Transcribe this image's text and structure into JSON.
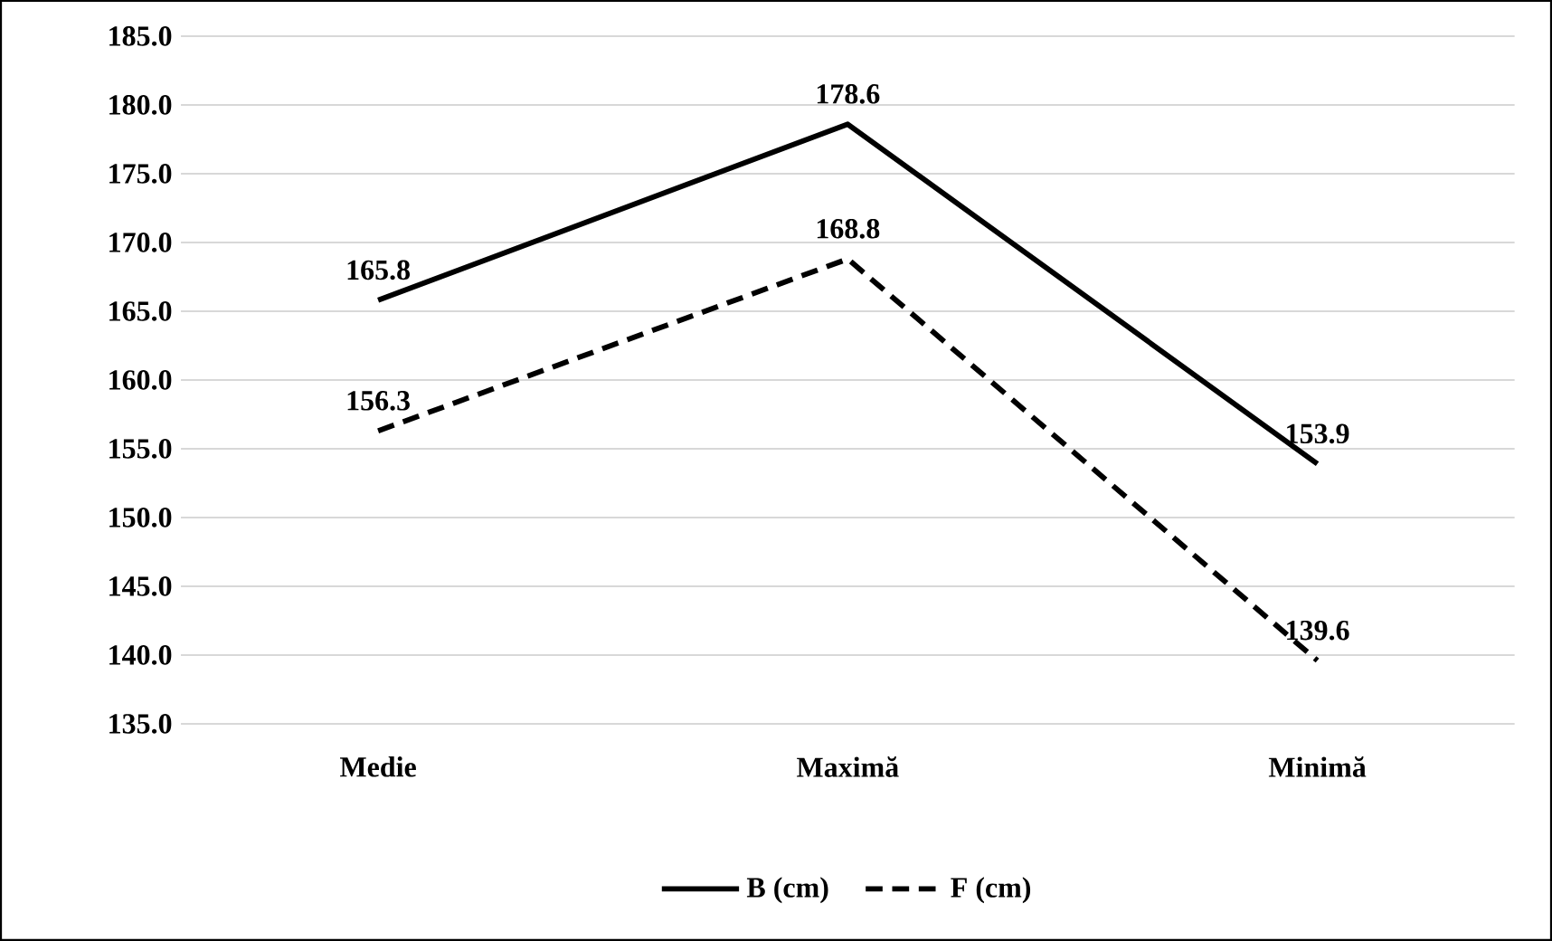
{
  "chart_data": {
    "type": "line",
    "categories": [
      "Medie",
      "Maximă",
      "Minimă"
    ],
    "series": [
      {
        "name": "B (cm)",
        "color": "#000000",
        "line_style": "solid",
        "values": [
          165.8,
          178.6,
          153.9
        ]
      },
      {
        "name": "F (cm)",
        "color": "#000000",
        "line_style": "dashed",
        "values": [
          156.3,
          168.8,
          139.6
        ]
      }
    ],
    "ylim": [
      135,
      185
    ],
    "yticks": [
      {
        "value": 135,
        "label": "135.0"
      },
      {
        "value": 140,
        "label": "140.0"
      },
      {
        "value": 145,
        "label": "145.0"
      },
      {
        "value": 150,
        "label": "150.0"
      },
      {
        "value": 155,
        "label": "155.0"
      },
      {
        "value": 160,
        "label": "160.0"
      },
      {
        "value": 165,
        "label": "165.0"
      },
      {
        "value": 170,
        "label": "170.0"
      },
      {
        "value": 175,
        "label": "175.0"
      },
      {
        "value": 180,
        "label": "180.0"
      },
      {
        "value": 185,
        "label": "185.0"
      }
    ],
    "grid": "y",
    "legend": "bottom",
    "data_labels": true,
    "marker": "none"
  }
}
